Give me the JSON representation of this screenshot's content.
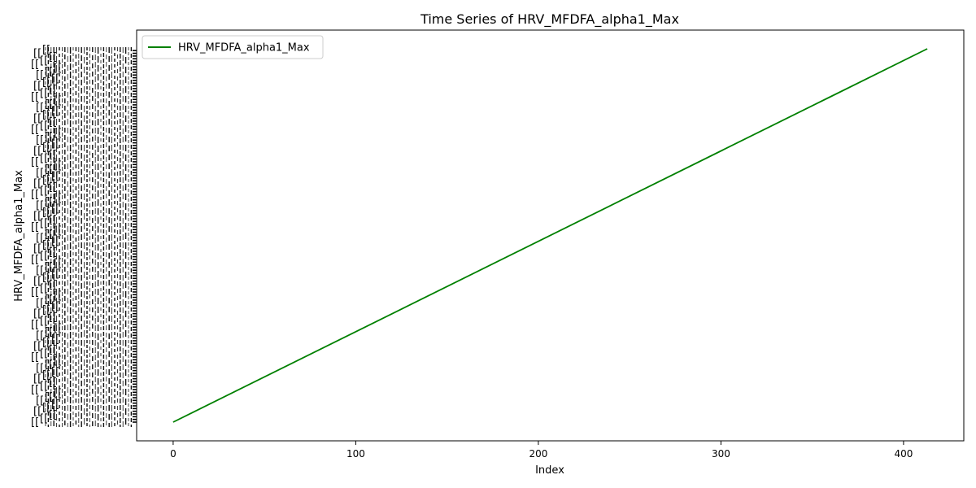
{
  "chart_data": {
    "type": "line",
    "title": "Time Series of HRV_MFDFA_alpha1_Max",
    "xlabel": "Index",
    "ylabel": "HRV_MFDFA_alpha1_Max",
    "xlim": [
      -20,
      433
    ],
    "x_ticks": [
      0,
      100,
      200,
      300,
      400
    ],
    "x_tick_labels": [
      "0",
      "100",
      "200",
      "300",
      "400"
    ],
    "categorical_count": 414,
    "y_tick_labels_note_text": "[[",
    "series": [
      {
        "name": "HRV_MFDFA_alpha1_Max",
        "color": "#008000",
        "x": [
          0,
          413
        ],
        "y": [
          0,
          413
        ]
      }
    ],
    "legend": {
      "placement": "top-left",
      "entries": [
        "HRV_MFDFA_alpha1_Max"
      ]
    },
    "grid": false
  }
}
